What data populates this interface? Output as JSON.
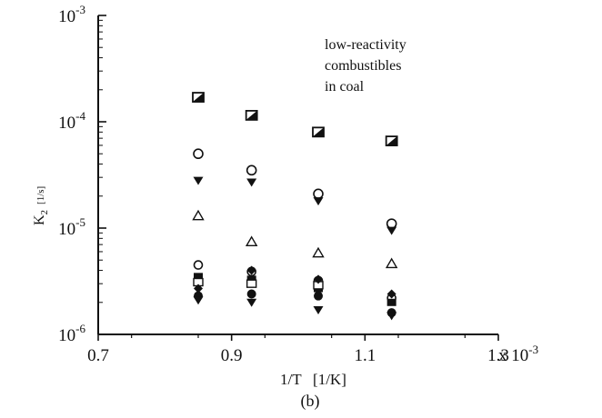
{
  "chart_data": {
    "type": "scatter",
    "x_scale": "linear",
    "y_scale": "log",
    "xlim": [
      0.7,
      1.3
    ],
    "ylim": [
      1e-06,
      0.001
    ],
    "x_ticks": [
      0.7,
      0.9,
      1.1,
      1.3
    ],
    "x_tick_labels": [
      "0.7",
      "0.9",
      "1.1",
      "1.3"
    ],
    "x_multiplier_label": "x 10",
    "x_multiplier_exponent": "-3",
    "y_ticks": [
      1e-06,
      1e-05,
      0.0001,
      0.001
    ],
    "y_tick_bases": [
      "10",
      "10",
      "10",
      "10"
    ],
    "y_tick_exponents": [
      "-6",
      "-5",
      "-4",
      "-3"
    ],
    "xlabel": "1/T   [1/K]",
    "ylabel_main": "K",
    "ylabel_sub": "2",
    "ylabel_unit": "[1/s]",
    "caption": "(b)",
    "annotation": [
      "low-reactivity",
      "combustibles",
      "in coal"
    ],
    "grid": false,
    "series": [
      {
        "marker": "half-square",
        "x": [
          0.85,
          0.93,
          1.03,
          1.14
        ],
        "y": [
          0.00017,
          0.000115,
          8e-05,
          6.6e-05
        ]
      },
      {
        "marker": "open-circle",
        "x": [
          0.85,
          0.93,
          1.03,
          1.14
        ],
        "y": [
          5e-05,
          3.5e-05,
          2.1e-05,
          1.1e-05
        ]
      },
      {
        "marker": "filled-triangle-down",
        "x": [
          0.85,
          0.93,
          1.03,
          1.14
        ],
        "y": [
          2.8e-05,
          2.7e-05,
          1.8e-05,
          9.5e-06
        ]
      },
      {
        "marker": "open-triangle",
        "x": [
          0.85,
          0.93,
          1.03,
          1.14
        ],
        "y": [
          1.3e-05,
          7.4e-06,
          5.8e-06,
          4.6e-06
        ]
      },
      {
        "marker": "open-circle-small",
        "x": [
          0.85,
          0.93,
          1.03,
          1.14
        ],
        "y": [
          4.5e-06,
          3.9e-06,
          3.2e-06,
          2.2e-06
        ]
      },
      {
        "marker": "filled-square",
        "x": [
          0.85,
          0.93,
          1.03,
          1.14
        ],
        "y": [
          3.5e-06,
          3.3e-06,
          2.7e-06,
          2e-06
        ]
      },
      {
        "marker": "open-square",
        "x": [
          0.85,
          0.93,
          1.03
        ],
        "y": [
          3.1e-06,
          3e-06,
          2.9e-06
        ]
      },
      {
        "marker": "filled-diamond",
        "x": [
          0.85,
          0.93,
          1.03,
          1.14
        ],
        "y": [
          2.7e-06,
          4e-06,
          3.3e-06,
          2.4e-06
        ]
      },
      {
        "marker": "filled-circle",
        "x": [
          0.85,
          0.93,
          1.03,
          1.14
        ],
        "y": [
          2.3e-06,
          2.4e-06,
          2.3e-06,
          1.6e-06
        ]
      },
      {
        "marker": "filled-triangle-down-2",
        "x": [
          0.85,
          0.93,
          1.03,
          1.14
        ],
        "y": [
          2.1e-06,
          2e-06,
          1.7e-06,
          1.5e-06
        ]
      }
    ]
  }
}
